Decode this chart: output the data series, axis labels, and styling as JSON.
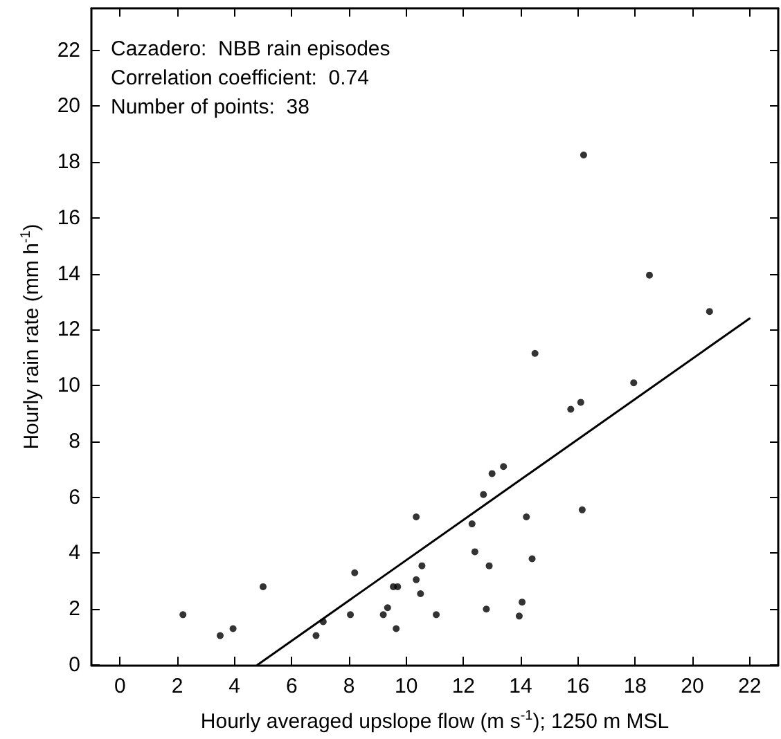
{
  "chart_data": {
    "type": "scatter",
    "xlabel": "Hourly averaged upslope flow (m s$^{-1}$); 1250 m MSL",
    "ylabel": "Hourly rain rate (mm h$^{-1}$)",
    "annotations": [
      "Cazadero:  NBB rain episodes",
      "Correlation coefficient:  0.74",
      "Number of points:  38"
    ],
    "xlim": [
      -1,
      23
    ],
    "ylim": [
      0,
      23.5
    ],
    "xticks": [
      0,
      2,
      4,
      6,
      8,
      10,
      12,
      14,
      16,
      18,
      20,
      22
    ],
    "yticks": [
      0,
      2,
      4,
      6,
      8,
      10,
      12,
      14,
      16,
      18,
      20,
      22
    ],
    "marker": "circle",
    "series": [
      {
        "color": "#000000",
        "x": [
          2.2,
          3.5,
          3.95,
          5.0,
          6.85,
          7.1,
          8.05,
          8.2,
          9.2,
          9.35,
          9.55,
          9.7,
          9.65,
          10.35,
          10.55,
          10.5,
          11.05,
          10.35,
          12.3,
          12.4,
          12.9,
          12.8,
          12.7,
          13.0,
          13.4,
          14.2,
          14.4,
          14.05,
          13.95,
          15.75,
          16.1,
          16.15,
          17.95,
          16.2,
          18.5,
          20.6,
          14.5
        ],
        "values": [
          1.8,
          1.05,
          1.3,
          2.8,
          1.05,
          1.55,
          1.8,
          3.3,
          1.8,
          2.05,
          2.8,
          2.8,
          1.3,
          3.05,
          3.55,
          2.55,
          1.8,
          5.3,
          5.05,
          4.05,
          3.55,
          2.0,
          6.1,
          6.85,
          7.1,
          5.3,
          3.8,
          2.25,
          1.75,
          9.15,
          9.4,
          5.55,
          10.1,
          18.25,
          13.95,
          12.65,
          11.15
        ]
      },
      {
        "type": "line",
        "color": "#000000",
        "marker": "none",
        "line_style": "solid",
        "x": [
          4.8,
          22
        ],
        "values": [
          0,
          12.4
        ]
      }
    ]
  }
}
